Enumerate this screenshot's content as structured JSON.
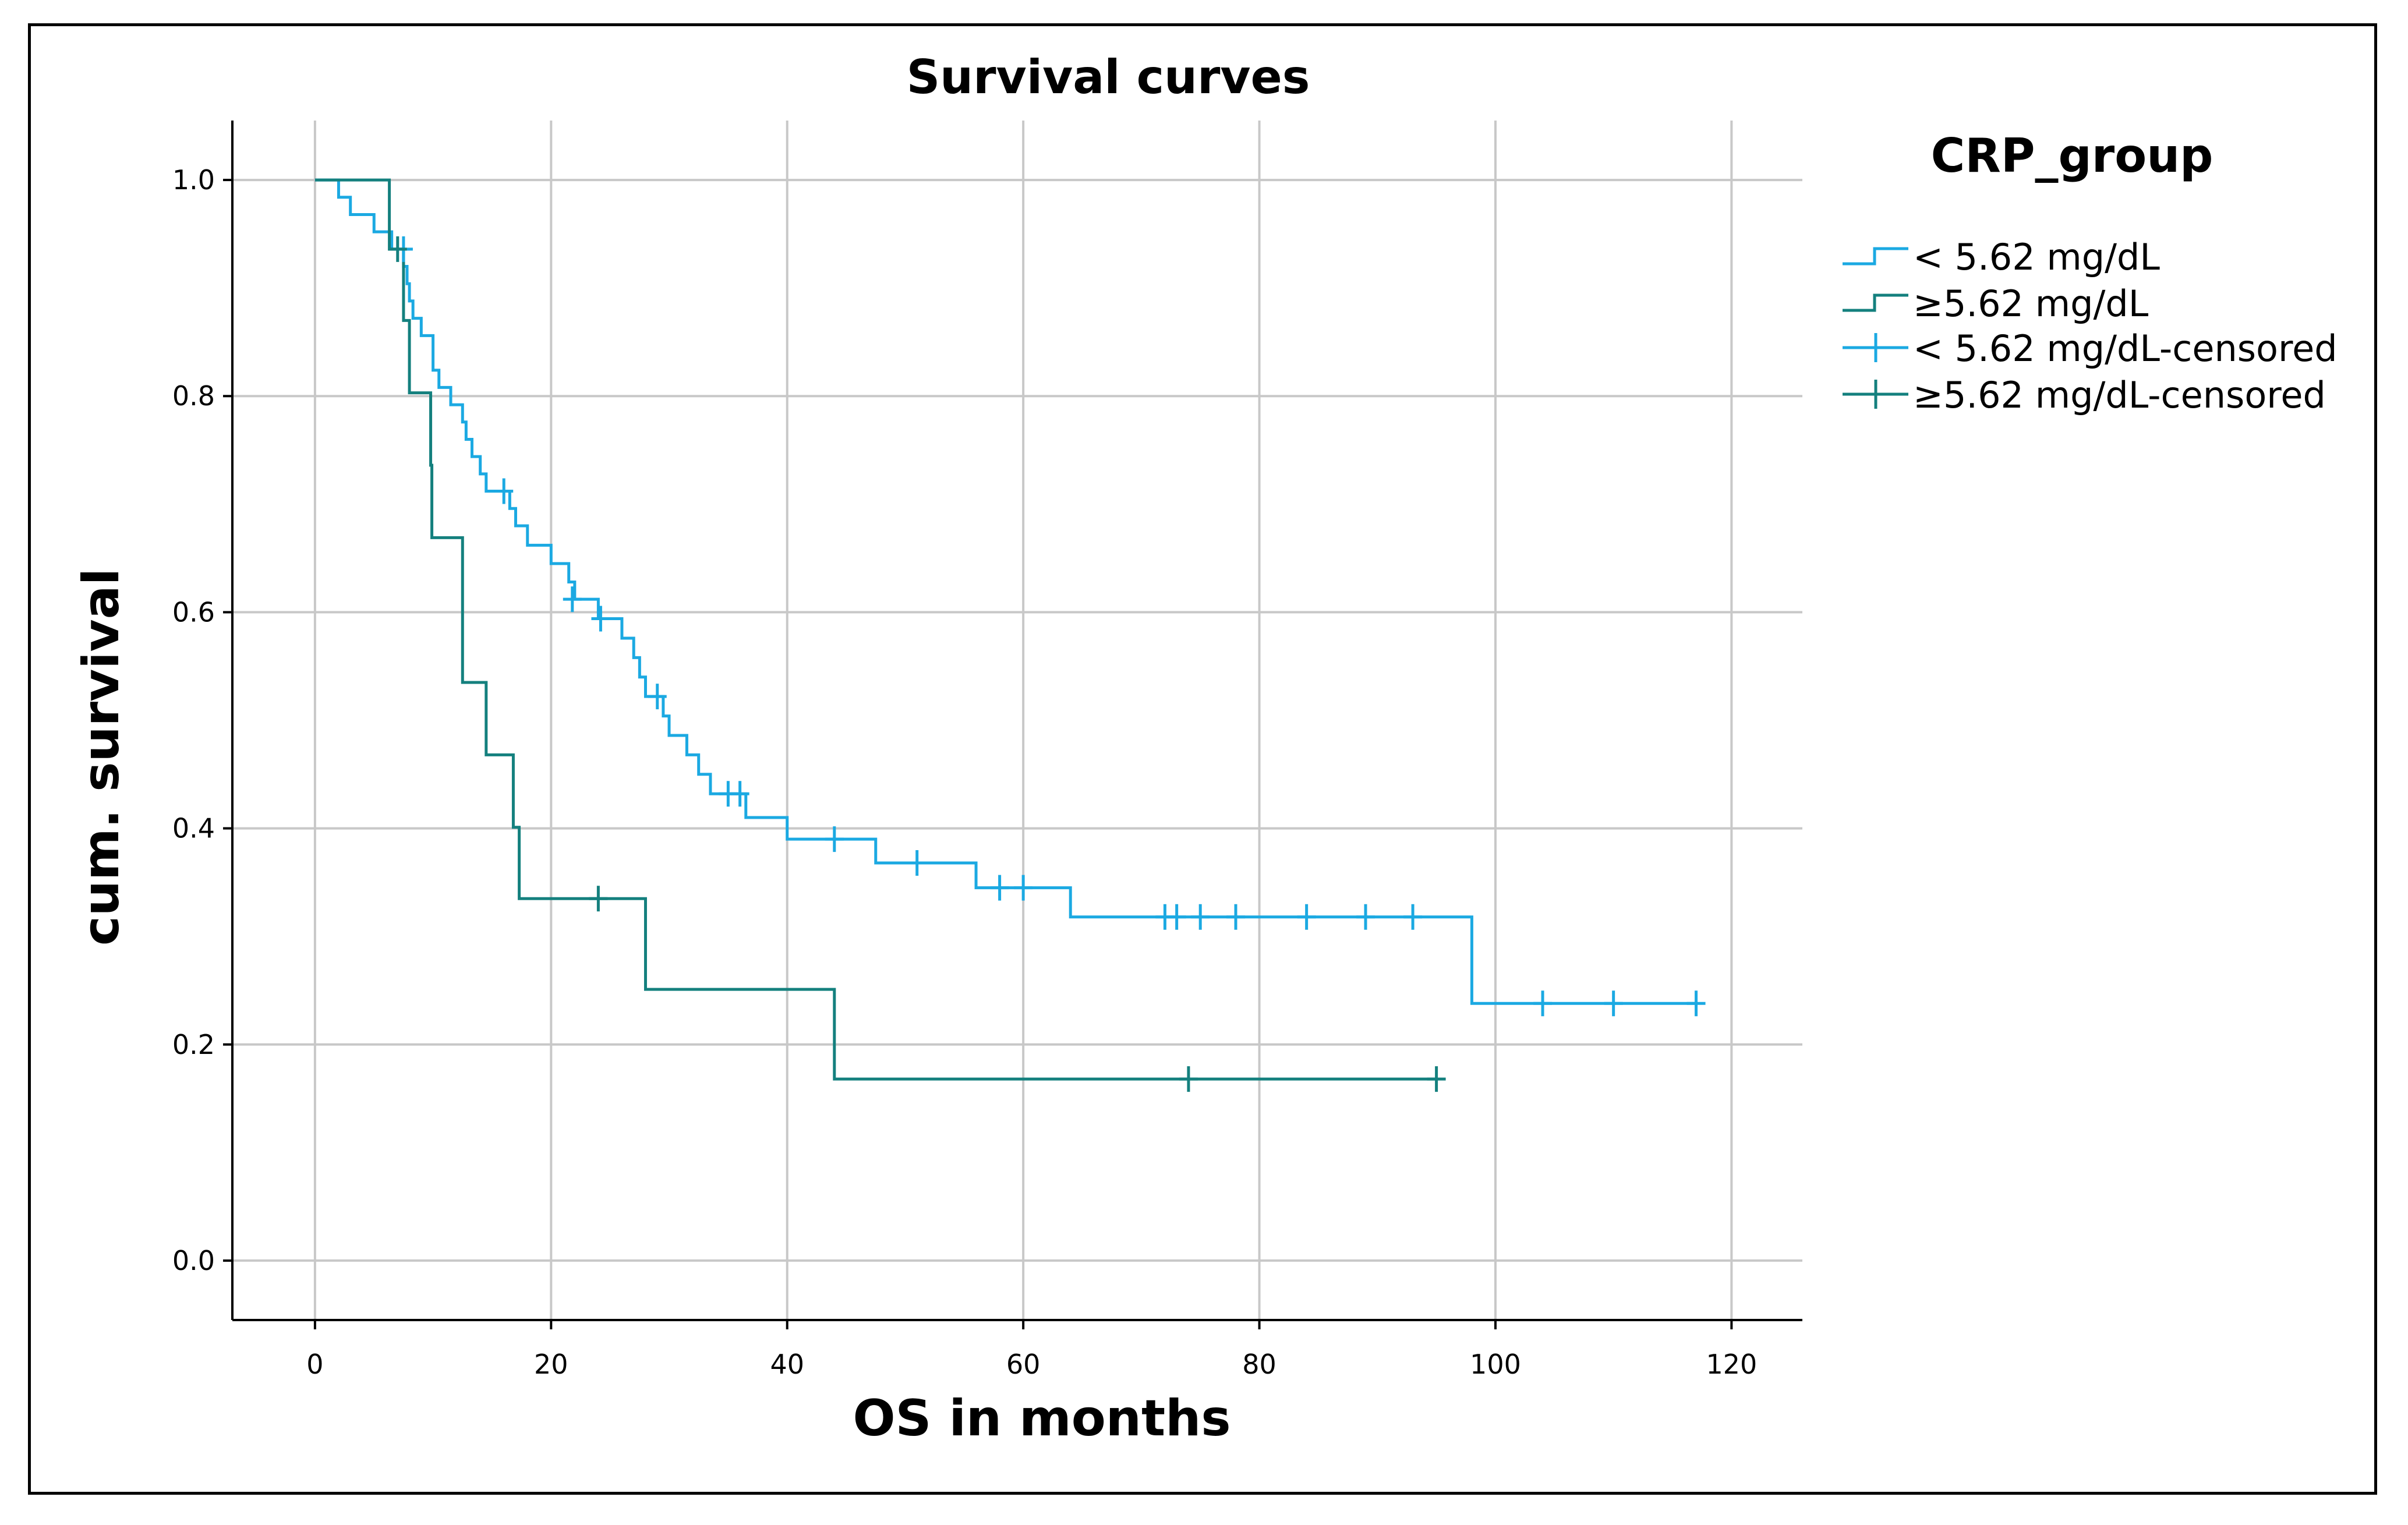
{
  "chart_data": {
    "type": "line",
    "subtype": "kaplan-meier step survival curve",
    "title": "Survival curves",
    "xlabel": "OS in months",
    "ylabel": "cum. survival",
    "xlim": [
      -7,
      126
    ],
    "ylim": [
      -0.055,
      1.055
    ],
    "x_ticks": [
      0,
      20,
      40,
      60,
      80,
      100,
      120
    ],
    "y_ticks": [
      0.0,
      0.2,
      0.4,
      0.6,
      0.8,
      1.0
    ],
    "x_tick_labels": [
      "0",
      "20",
      "40",
      "60",
      "80",
      "100",
      "120"
    ],
    "y_tick_labels": [
      "0.0",
      "0.2",
      "0.4",
      "0.6",
      "0.8",
      "1.0"
    ],
    "grid": true,
    "legend": {
      "title": "CRP_group",
      "position": "right",
      "entries": [
        "< 5.62 mg/dL",
        "≥5.62 mg/dL",
        "< 5.62 mg/dL-censored",
        "≥5.62 mg/dL-censored"
      ]
    },
    "series": [
      {
        "name": "< 5.62 mg/dL",
        "color": "#1ba9e2",
        "steps": [
          [
            0,
            1.0
          ],
          [
            2,
            0.984
          ],
          [
            3,
            0.968
          ],
          [
            5,
            0.952
          ],
          [
            6.5,
            0.936
          ],
          [
            7.5,
            0.92
          ],
          [
            7.8,
            0.904
          ],
          [
            8,
            0.888
          ],
          [
            8.3,
            0.872
          ],
          [
            9,
            0.856
          ],
          [
            10,
            0.824
          ],
          [
            10.5,
            0.808
          ],
          [
            11.5,
            0.792
          ],
          [
            12.5,
            0.776
          ],
          [
            12.8,
            0.76
          ],
          [
            13.3,
            0.744
          ],
          [
            14,
            0.728
          ],
          [
            14.5,
            0.712
          ],
          [
            16.5,
            0.696
          ],
          [
            17,
            0.68
          ],
          [
            18,
            0.662
          ],
          [
            20,
            0.645
          ],
          [
            21.5,
            0.628
          ],
          [
            22,
            0.612
          ],
          [
            24,
            0.594
          ],
          [
            26,
            0.576
          ],
          [
            27,
            0.558
          ],
          [
            27.5,
            0.54
          ],
          [
            28,
            0.522
          ],
          [
            29.5,
            0.504
          ],
          [
            30,
            0.486
          ],
          [
            31.5,
            0.468
          ],
          [
            32.5,
            0.45
          ],
          [
            33.5,
            0.432
          ],
          [
            36.5,
            0.41
          ],
          [
            40,
            0.39
          ],
          [
            47.5,
            0.368
          ],
          [
            56,
            0.345
          ],
          [
            64,
            0.318
          ],
          [
            98,
            0.238
          ]
        ],
        "end_x": 117,
        "censored": [
          [
            7.5,
            0.936
          ],
          [
            16,
            0.712
          ],
          [
            21.8,
            0.612
          ],
          [
            24.2,
            0.594
          ],
          [
            29,
            0.522
          ],
          [
            35,
            0.432
          ],
          [
            36,
            0.432
          ],
          [
            44,
            0.39
          ],
          [
            51,
            0.368
          ],
          [
            58,
            0.345
          ],
          [
            60,
            0.345
          ],
          [
            72,
            0.318
          ],
          [
            73,
            0.318
          ],
          [
            75,
            0.318
          ],
          [
            78,
            0.318
          ],
          [
            84,
            0.318
          ],
          [
            89,
            0.318
          ],
          [
            93,
            0.318
          ],
          [
            104,
            0.238
          ],
          [
            110,
            0.238
          ],
          [
            117,
            0.238
          ]
        ]
      },
      {
        "name": "≥5.62 mg/dL",
        "color": "#14807e",
        "steps": [
          [
            0,
            1.0
          ],
          [
            6.3,
            0.936
          ],
          [
            7.5,
            0.87
          ],
          [
            8,
            0.803
          ],
          [
            9.8,
            0.736
          ],
          [
            9.9,
            0.669
          ],
          [
            12.5,
            0.535
          ],
          [
            14.5,
            0.468
          ],
          [
            16.8,
            0.401
          ],
          [
            17.3,
            0.335
          ],
          [
            28,
            0.251
          ],
          [
            44,
            0.168
          ]
        ],
        "end_x": 95,
        "censored": [
          [
            7,
            0.936
          ],
          [
            24,
            0.335
          ],
          [
            74,
            0.168
          ],
          [
            95,
            0.168
          ]
        ]
      }
    ]
  }
}
